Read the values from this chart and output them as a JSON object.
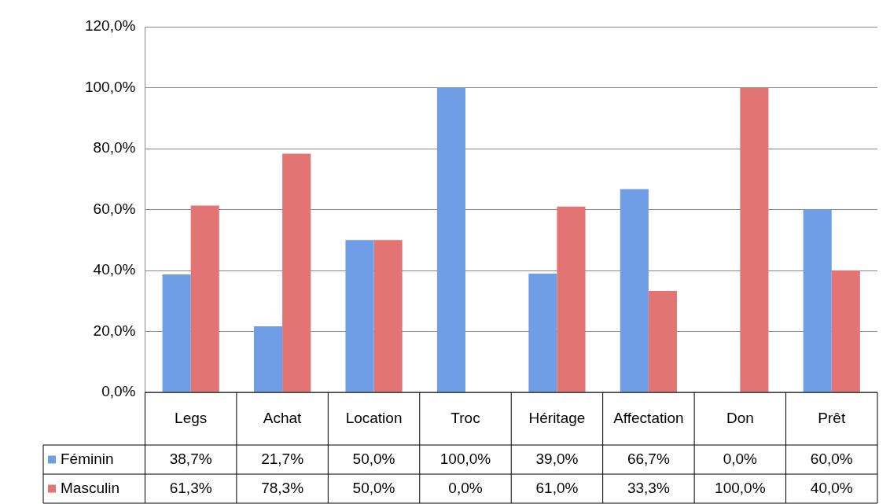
{
  "chart_data": {
    "type": "bar",
    "categories": [
      "Legs",
      "Achat",
      "Location",
      "Troc",
      "Héritage",
      "Affectation",
      "Don",
      "Prêt"
    ],
    "series": [
      {
        "name": "Féminin",
        "color": "#6f9de6",
        "values": [
          38.7,
          21.7,
          50.0,
          100.0,
          39.0,
          66.7,
          0.0,
          60.0
        ],
        "value_labels": [
          "38,7%",
          "21,7%",
          "50,0%",
          "100,0%",
          "39,0%",
          "66,7%",
          "0,0%",
          "60,0%"
        ]
      },
      {
        "name": "Masculin",
        "color": "#e27574",
        "values": [
          61.3,
          78.3,
          50.0,
          0.0,
          61.0,
          33.3,
          100.0,
          40.0
        ],
        "value_labels": [
          "61,3%",
          "78,3%",
          "50,0%",
          "0,0%",
          "61,0%",
          "33,3%",
          "100,0%",
          "40,0%"
        ]
      }
    ],
    "ylim": [
      0,
      120
    ],
    "yticks": [
      {
        "value": 0,
        "label": "0,0%"
      },
      {
        "value": 20,
        "label": "20,0%"
      },
      {
        "value": 40,
        "label": "40,0%"
      },
      {
        "value": 60,
        "label": "60,0%"
      },
      {
        "value": 80,
        "label": "80,0%"
      },
      {
        "value": 100,
        "label": "100,0%"
      },
      {
        "value": 120,
        "label": "120,0%"
      }
    ],
    "grid": "y",
    "legend": "bottom left"
  }
}
